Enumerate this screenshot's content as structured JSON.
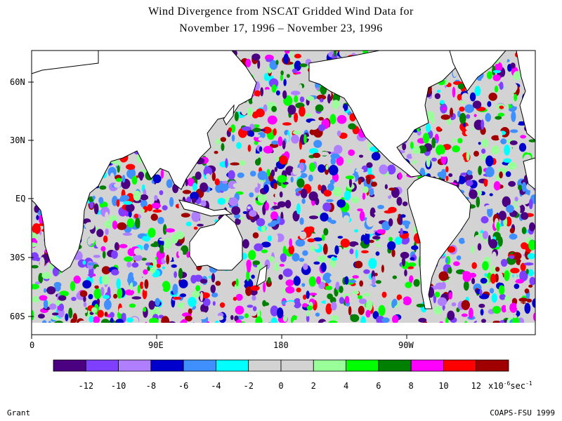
{
  "title_line1": "Wind Divergence from NSCAT Gridded Wind Data for",
  "title_line2": "November 17, 1996 – November 23, 1996",
  "lat_labels": [
    "60N",
    "30N",
    "EQ",
    "30S",
    "60S"
  ],
  "lon_labels": [
    "0",
    "90E",
    "180",
    "90W"
  ],
  "colorbar": {
    "colors": [
      "#4b0082",
      "#7f3fff",
      "#b07fff",
      "#0000cd",
      "#3f8fff",
      "#00ffff",
      "#d3d3d3",
      "#d3d3d3",
      "#99ff99",
      "#00ff00",
      "#008000",
      "#ff00ff",
      "#ff0000",
      "#a00000"
    ],
    "tick_labels": [
      "-12",
      "-10",
      "-8",
      "-6",
      "-4",
      "-2",
      "0",
      "2",
      "4",
      "6",
      "8",
      "10",
      "12"
    ],
    "unit_main": "x10",
    "unit_exp": "-6",
    "unit_rest": "sec",
    "unit_exp2": "-1"
  },
  "footer_left": "Grant",
  "footer_right": "COAPS-FSU 1999"
}
